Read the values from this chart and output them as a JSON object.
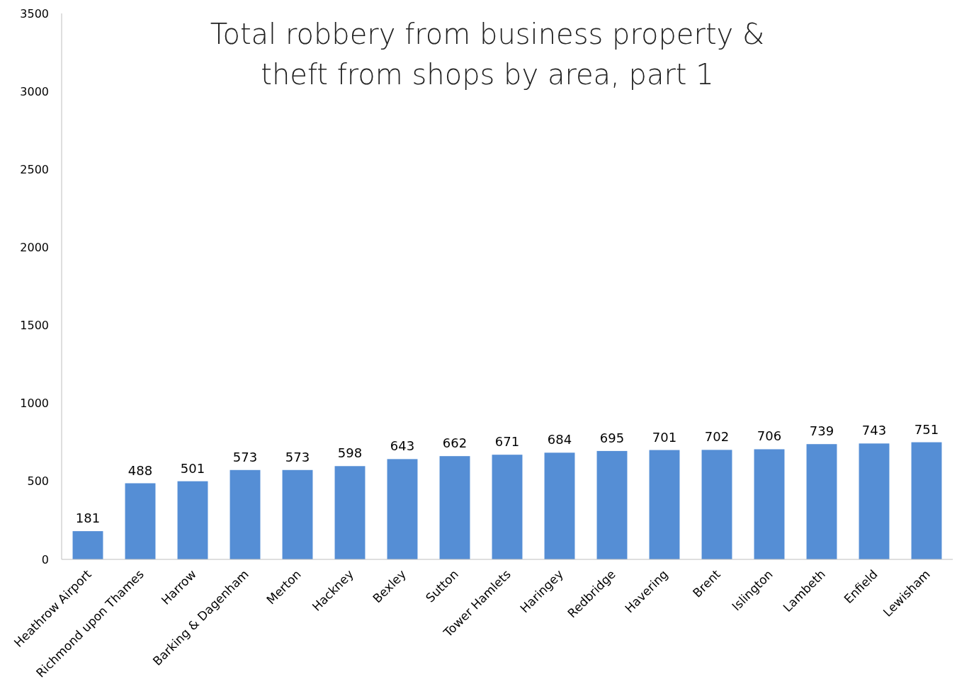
{
  "chart_data": {
    "type": "bar",
    "title": "Total robbery from business property & theft from shops by area, part 1",
    "categories": [
      "Heathrow Airport",
      "Richmond upon Thames",
      "Harrow",
      "Barking & Dagenham",
      "Merton",
      "Hackney",
      "Bexley",
      "Sutton",
      "Tower Hamlets",
      "Haringey",
      "Redbridge",
      "Havering",
      "Brent",
      "Islington",
      "Lambeth",
      "Enfield",
      "Lewisham"
    ],
    "values": [
      181,
      488,
      501,
      573,
      573,
      598,
      643,
      662,
      671,
      684,
      695,
      701,
      702,
      706,
      739,
      743,
      751
    ],
    "color": "#558ed5",
    "ylim": [
      0,
      3500
    ],
    "yticks": [
      0,
      500,
      1000,
      1500,
      2000,
      2500,
      3000,
      3500
    ],
    "grid": false,
    "data_labels": true
  }
}
